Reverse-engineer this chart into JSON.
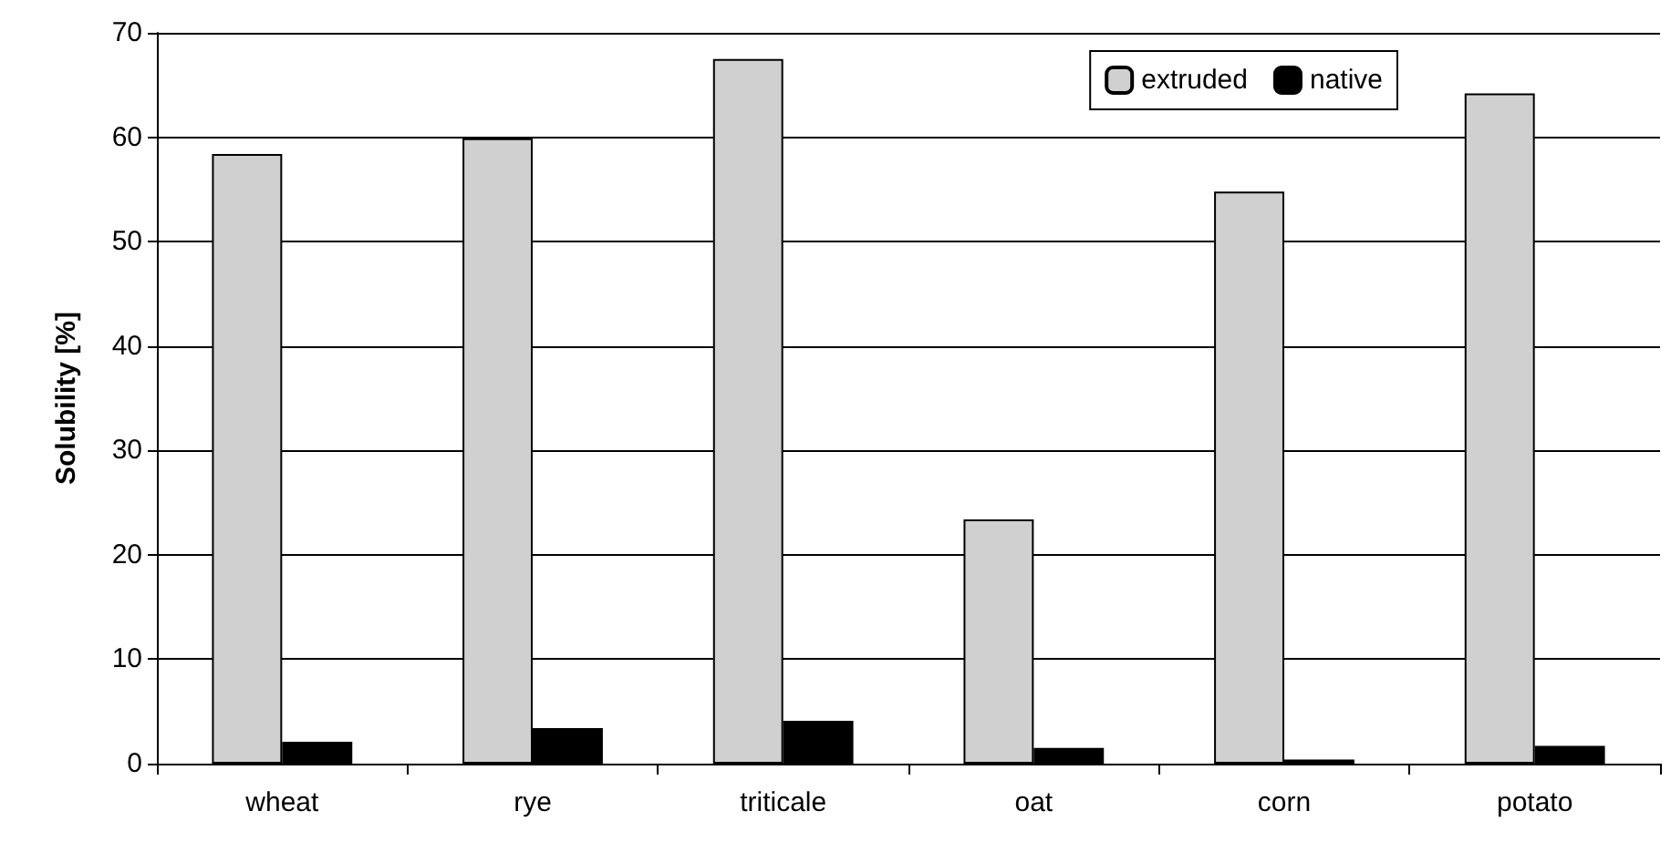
{
  "chart_data": {
    "type": "bar",
    "ylabel": "Solubility [%]",
    "categories": [
      "wheat",
      "rye",
      "triticale",
      "oat",
      "corn",
      "potato"
    ],
    "series": [
      {
        "name": "extruded",
        "color": "#d0d0d0",
        "values": [
          58.4,
          59.9,
          67.5,
          23.4,
          54.8,
          64.2
        ]
      },
      {
        "name": "native",
        "color": "#000000",
        "values": [
          2.1,
          3.4,
          4.1,
          1.5,
          0.4,
          1.7
        ]
      }
    ],
    "ylim": [
      0,
      70
    ],
    "yticks": [
      0,
      10,
      20,
      30,
      40,
      50,
      60,
      70
    ],
    "grid": "y",
    "legend": "top right"
  }
}
